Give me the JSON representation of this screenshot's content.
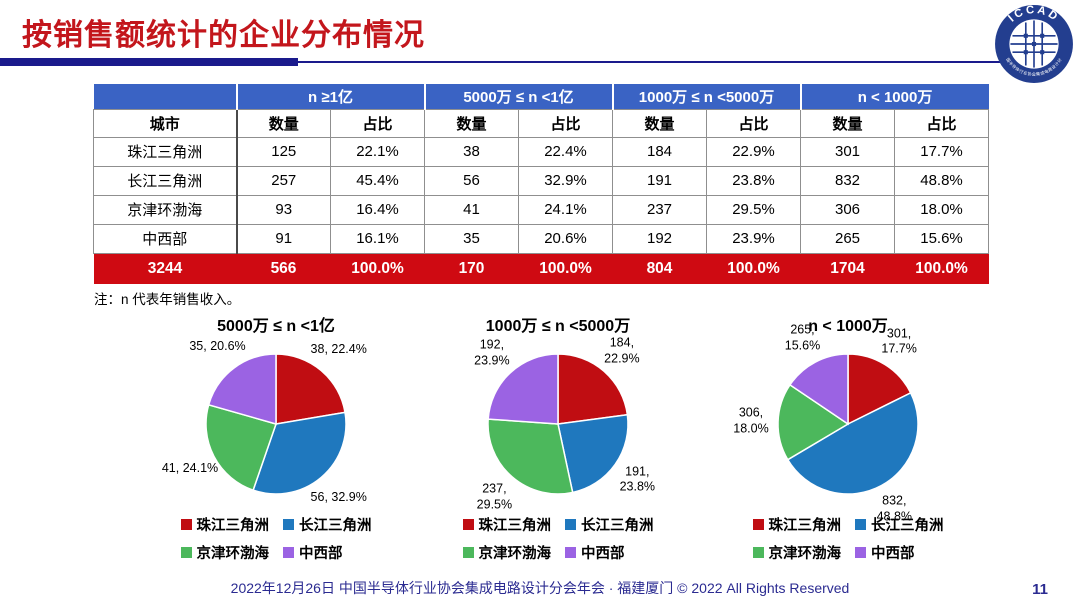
{
  "page": {
    "title": "按销售额统计的企业分布情况",
    "page_number": "11"
  },
  "logo": {
    "text": "ICCAD",
    "subtext": "中国半导体行业协会集成电路设计分会"
  },
  "colors": {
    "title_red": "#C3161C",
    "bar_navy": "#1A1A8C",
    "header_blue": "#3A63C4",
    "total_red": "#CF0A12",
    "footer_navy": "#2B2B91",
    "logo_navy": "#233E8F"
  },
  "table": {
    "city_header": "城市",
    "group_headers": [
      "n ≥1亿",
      "5000万 ≤ n <1亿",
      "1000万 ≤ n <5000万",
      "n < 1000万"
    ],
    "sub_headers": [
      "数量",
      "占比"
    ],
    "rows": [
      {
        "city": "珠江三角洲",
        "cells": [
          "125",
          "22.1%",
          "38",
          "22.4%",
          "184",
          "22.9%",
          "301",
          "17.7%"
        ]
      },
      {
        "city": "长江三角洲",
        "cells": [
          "257",
          "45.4%",
          "56",
          "32.9%",
          "191",
          "23.8%",
          "832",
          "48.8%"
        ]
      },
      {
        "city": "京津环渤海",
        "cells": [
          "93",
          "16.4%",
          "41",
          "24.1%",
          "237",
          "29.5%",
          "306",
          "18.0%"
        ]
      },
      {
        "city": "中西部",
        "cells": [
          "91",
          "16.1%",
          "35",
          "20.6%",
          "192",
          "23.9%",
          "265",
          "15.6%"
        ]
      }
    ],
    "total_row": {
      "city": "3244",
      "cells": [
        "566",
        "100.0%",
        "170",
        "100.0%",
        "804",
        "100.0%",
        "1704",
        "100.0%"
      ]
    }
  },
  "note": "注：n 代表年销售收入。",
  "chart_data": [
    {
      "type": "pie",
      "title": "5000万 ≤ n <1亿",
      "categories": [
        "珠江三角洲",
        "长江三角洲",
        "京津环渤海",
        "中西部"
      ],
      "values": [
        38,
        56,
        41,
        35
      ],
      "percent_labels": [
        "22.4%",
        "32.9%",
        "24.1%",
        "20.6%"
      ],
      "slice_labels": [
        [
          "38, 22.4%"
        ],
        [
          "56, 32.9%"
        ],
        [
          "41, 24.1%"
        ],
        [
          "35, 20.6%"
        ]
      ],
      "colors": [
        "#C00D12",
        "#1F78BE",
        "#4CB85C",
        "#9B63E3"
      ],
      "start_angle_deg": -90,
      "direction": "clockwise",
      "legend_position": "bottom"
    },
    {
      "type": "pie",
      "title": "1000万 ≤ n <5000万",
      "categories": [
        "珠江三角洲",
        "长江三角洲",
        "京津环渤海",
        "中西部"
      ],
      "values": [
        184,
        191,
        237,
        192
      ],
      "percent_labels": [
        "22.9%",
        "23.8%",
        "29.5%",
        "23.9%"
      ],
      "slice_labels": [
        [
          "184,",
          "22.9%"
        ],
        [
          "191,",
          "23.8%"
        ],
        [
          "237,",
          "29.5%"
        ],
        [
          "192,",
          "23.9%"
        ]
      ],
      "colors": [
        "#C00D12",
        "#1F78BE",
        "#4CB85C",
        "#9B63E3"
      ],
      "start_angle_deg": -90,
      "direction": "clockwise",
      "legend_position": "bottom"
    },
    {
      "type": "pie",
      "title": "n < 1000万",
      "categories": [
        "珠江三角洲",
        "长江三角洲",
        "京津环渤海",
        "中西部"
      ],
      "values": [
        301,
        832,
        306,
        265
      ],
      "percent_labels": [
        "17.7%",
        "48.8%",
        "18.0%",
        "15.6%"
      ],
      "slice_labels": [
        [
          "301,",
          "17.7%"
        ],
        [
          "832,",
          "48.8%"
        ],
        [
          "306,",
          "18.0%"
        ],
        [
          "265,",
          "15.6%"
        ]
      ],
      "colors": [
        "#C00D12",
        "#1F78BE",
        "#4CB85C",
        "#9B63E3"
      ],
      "start_angle_deg": -90,
      "direction": "clockwise",
      "legend_position": "bottom"
    }
  ],
  "footer": {
    "text": "2022年12月26日 中国半导体行业协会集成电路设计分会年会 · 福建厦门 © 2022 All Rights Reserved"
  }
}
